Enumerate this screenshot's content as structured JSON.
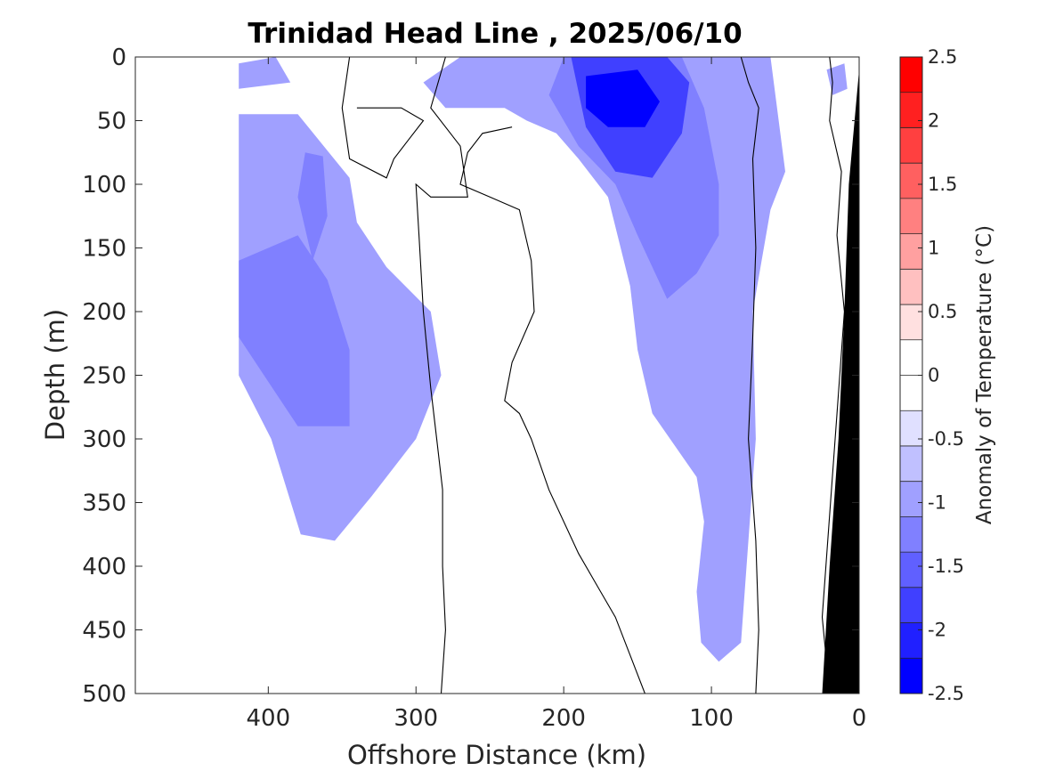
{
  "chart_data": {
    "type": "contour",
    "title": "Trinidad Head Line , 2025/06/10",
    "xlabel": "Offshore Distance (km)",
    "ylabel": "Depth (m)",
    "xlim": [
      490,
      0
    ],
    "ylim": [
      0,
      500
    ],
    "x_reversed": true,
    "y_reversed": true,
    "x_ticks": [
      400,
      300,
      200,
      100,
      0
    ],
    "x_tick_labels": [
      "400",
      "300",
      "200",
      "100",
      "0"
    ],
    "y_ticks": [
      0,
      50,
      100,
      150,
      200,
      250,
      300,
      350,
      400,
      450,
      500
    ],
    "y_tick_labels": [
      "0",
      "50",
      "100",
      "150",
      "200",
      "250",
      "300",
      "350",
      "400",
      "450",
      "500"
    ],
    "colorbar": {
      "label": "Anomaly of Temperature (°C)",
      "range": [
        -2.5,
        2.5
      ],
      "step": 0.25,
      "ticks": [
        2.5,
        2,
        1.5,
        1,
        0.5,
        0,
        -0.5,
        -1,
        -1.5,
        -2,
        -2.5
      ],
      "tick_labels": [
        "2.5",
        "2",
        "1.5",
        "1",
        "0.5",
        "0",
        "-0.5",
        "-1",
        "-1.5",
        "-2",
        "-2.5"
      ],
      "colors": [
        "#ff0000",
        "#ff2020",
        "#ff4040",
        "#ff6060",
        "#ff8080",
        "#ffa0a0",
        "#ffc0c0",
        "#ffe0e0",
        "#ffffff",
        "#ffffff",
        "#e0e0ff",
        "#c0c0ff",
        "#a0a0ff",
        "#8080ff",
        "#6060ff",
        "#4040ff",
        "#2020ff",
        "#0000ff"
      ]
    },
    "data_extent_km": 420,
    "zero_contour": "black",
    "seafloor_color": "#000000",
    "regions": [
      {
        "anomaly": -0.5,
        "points": [
          [
            420,
            5
          ],
          [
            395,
            0
          ],
          [
            385,
            20
          ],
          [
            420,
            25
          ]
        ]
      },
      {
        "anomaly": -0.5,
        "points": [
          [
            420,
            45
          ],
          [
            380,
            45
          ],
          [
            345,
            95
          ],
          [
            340,
            130
          ],
          [
            320,
            165
          ],
          [
            290,
            200
          ],
          [
            283,
            250
          ],
          [
            300,
            300
          ],
          [
            330,
            345
          ],
          [
            355,
            380
          ],
          [
            378,
            375
          ],
          [
            398,
            300
          ],
          [
            420,
            250
          ]
        ]
      },
      {
        "anomaly": -0.75,
        "points": [
          [
            420,
            160
          ],
          [
            380,
            140
          ],
          [
            360,
            175
          ],
          [
            345,
            230
          ],
          [
            345,
            290
          ],
          [
            380,
            290
          ],
          [
            400,
            255
          ],
          [
            420,
            220
          ]
        ]
      },
      {
        "anomaly": -0.75,
        "points": [
          [
            375,
            75
          ],
          [
            363,
            78
          ],
          [
            360,
            125
          ],
          [
            370,
            160
          ],
          [
            380,
            110
          ]
        ]
      },
      {
        "anomaly": -0.5,
        "points": [
          [
            270,
            0
          ],
          [
            295,
            20
          ],
          [
            280,
            40
          ],
          [
            240,
            40
          ],
          [
            225,
            50
          ],
          [
            205,
            60
          ],
          [
            190,
            80
          ],
          [
            170,
            110
          ],
          [
            155,
            180
          ],
          [
            150,
            230
          ],
          [
            140,
            280
          ],
          [
            110,
            330
          ],
          [
            105,
            365
          ],
          [
            110,
            420
          ],
          [
            107,
            460
          ],
          [
            95,
            475
          ],
          [
            80,
            460
          ],
          [
            75,
            380
          ],
          [
            70,
            300
          ],
          [
            72,
            200
          ],
          [
            60,
            120
          ],
          [
            50,
            90
          ],
          [
            60,
            0
          ]
        ]
      },
      {
        "anomaly": -0.75,
        "points": [
          [
            190,
            70
          ],
          [
            165,
            100
          ],
          [
            150,
            140
          ],
          [
            130,
            190
          ],
          [
            110,
            170
          ],
          [
            95,
            140
          ],
          [
            95,
            100
          ],
          [
            105,
            40
          ],
          [
            120,
            0
          ],
          [
            200,
            0
          ],
          [
            210,
            30
          ]
        ]
      },
      {
        "anomaly": -1.25,
        "points": [
          [
            195,
            0
          ],
          [
            130,
            0
          ],
          [
            115,
            20
          ],
          [
            120,
            60
          ],
          [
            140,
            95
          ],
          [
            165,
            90
          ],
          [
            185,
            55
          ]
        ]
      },
      {
        "anomaly": -1.75,
        "points": [
          [
            185,
            15
          ],
          [
            150,
            10
          ],
          [
            135,
            35
          ],
          [
            145,
            55
          ],
          [
            170,
            55
          ],
          [
            185,
            40
          ]
        ]
      },
      {
        "anomaly": -2.25,
        "points": [
          [
            175,
            20
          ],
          [
            165,
            18
          ],
          [
            160,
            30
          ],
          [
            168,
            45
          ],
          [
            178,
            38
          ]
        ]
      },
      {
        "anomaly": 0.25,
        "points": [
          [
            375,
            40
          ],
          [
            352,
            30
          ],
          [
            318,
            45
          ],
          [
            345,
            58
          ],
          [
            370,
            55
          ]
        ]
      },
      {
        "anomaly": 0.25,
        "points": [
          [
            270,
            150
          ],
          [
            245,
            125
          ],
          [
            220,
            120
          ],
          [
            215,
            145
          ],
          [
            232,
            180
          ],
          [
            255,
            180
          ],
          [
            270,
            165
          ]
        ]
      },
      {
        "anomaly": 0.25,
        "points": [
          [
            214,
            340
          ],
          [
            204,
            335
          ],
          [
            200,
            400
          ],
          [
            200,
            500
          ],
          [
            218,
            500
          ],
          [
            220,
            420
          ]
        ]
      },
      {
        "anomaly": 0.25,
        "points": [
          [
            65,
            155
          ],
          [
            52,
            150
          ],
          [
            45,
            200
          ],
          [
            50,
            300
          ],
          [
            58,
            380
          ],
          [
            58,
            450
          ],
          [
            63,
            500
          ],
          [
            35,
            500
          ],
          [
            38,
            400
          ],
          [
            40,
            300
          ],
          [
            38,
            200
          ],
          [
            42,
            160
          ]
        ]
      },
      {
        "anomaly": 0.25,
        "points": [
          [
            45,
            15
          ],
          [
            30,
            12
          ],
          [
            28,
            50
          ],
          [
            32,
            80
          ],
          [
            42,
            70
          ],
          [
            46,
            40
          ]
        ]
      },
      {
        "anomaly": -0.5,
        "points": [
          [
            22,
            10
          ],
          [
            10,
            5
          ],
          [
            8,
            25
          ],
          [
            18,
            30
          ]
        ]
      }
    ],
    "zero_lines": [
      [
        [
          345,
          0
        ],
        [
          350,
          40
        ],
        [
          345,
          80
        ],
        [
          320,
          95
        ],
        [
          315,
          80
        ],
        [
          305,
          65
        ],
        [
          295,
          50
        ],
        [
          310,
          40
        ],
        [
          340,
          40
        ]
      ],
      [
        [
          280,
          0
        ],
        [
          290,
          40
        ],
        [
          270,
          70
        ],
        [
          265,
          110
        ],
        [
          290,
          110
        ],
        [
          300,
          100
        ],
        [
          298,
          140
        ],
        [
          295,
          200
        ],
        [
          290,
          260
        ],
        [
          286,
          300
        ],
        [
          282,
          340
        ],
        [
          282,
          400
        ],
        [
          280,
          450
        ],
        [
          283,
          500
        ]
      ],
      [
        [
          235,
          55
        ],
        [
          255,
          60
        ],
        [
          265,
          75
        ],
        [
          270,
          100
        ],
        [
          250,
          110
        ],
        [
          230,
          120
        ],
        [
          222,
          160
        ],
        [
          220,
          200
        ],
        [
          235,
          240
        ],
        [
          240,
          270
        ],
        [
          230,
          280
        ],
        [
          222,
          300
        ],
        [
          210,
          340
        ],
        [
          190,
          390
        ],
        [
          175,
          420
        ],
        [
          165,
          440
        ],
        [
          155,
          470
        ],
        [
          145,
          500
        ]
      ],
      [
        [
          80,
          0
        ],
        [
          75,
          20
        ],
        [
          68,
          40
        ],
        [
          72,
          80
        ],
        [
          70,
          150
        ],
        [
          72,
          220
        ],
        [
          75,
          300
        ],
        [
          70,
          380
        ],
        [
          68,
          450
        ],
        [
          70,
          500
        ]
      ],
      [
        [
          20,
          0
        ],
        [
          18,
          20
        ],
        [
          20,
          50
        ],
        [
          12,
          90
        ],
        [
          15,
          140
        ],
        [
          10,
          200
        ],
        [
          15,
          280
        ],
        [
          20,
          360
        ],
        [
          25,
          440
        ],
        [
          20,
          500
        ]
      ]
    ],
    "seafloor": [
      [
        0,
        10
      ],
      [
        0,
        500
      ],
      [
        25,
        500
      ],
      [
        20,
        400
      ],
      [
        14,
        300
      ],
      [
        10,
        200
      ],
      [
        7,
        100
      ]
    ]
  }
}
